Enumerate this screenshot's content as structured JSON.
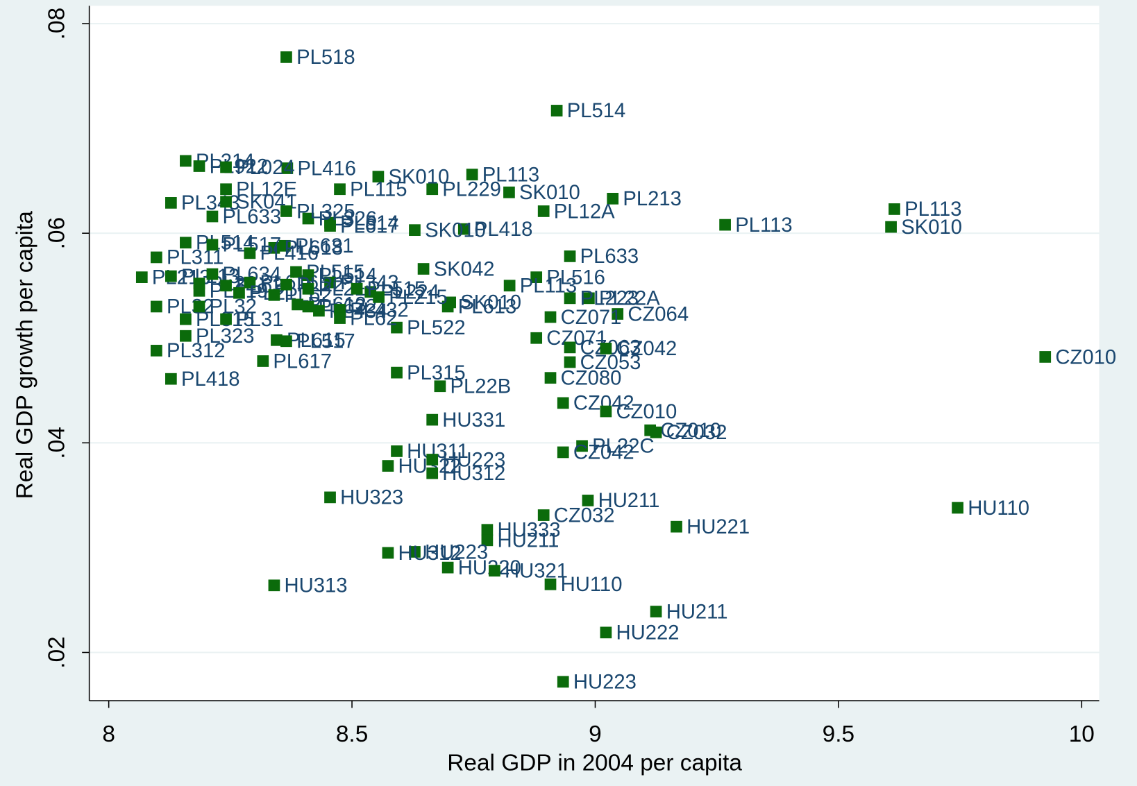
{
  "chart_data": {
    "type": "scatter",
    "x_label": "Real GDP in 2004 per capita",
    "y_label": "Real GDP growth per capita",
    "xlim": [
      7.96,
      10.036
    ],
    "ylim": [
      0.0154,
      0.0817
    ],
    "xticks": [
      8,
      8.5,
      9,
      9.5,
      10
    ],
    "yticks": [
      {
        "value": 0.02,
        "label": ".02"
      },
      {
        "value": 0.04,
        "label": ".04"
      },
      {
        "value": 0.06,
        "label": ".06"
      },
      {
        "value": 0.08,
        "label": ".08"
      }
    ],
    "grid": true,
    "color": "#0b6b0b",
    "label_color": "#1a476f",
    "x": [
      8.365,
      8.921,
      9.925,
      9.745,
      9.615,
      9.608,
      9.267,
      9.036,
      8.894,
      8.823,
      8.747,
      8.665,
      8.554,
      8.475,
      8.367,
      8.948,
      8.879,
      8.824,
      8.647,
      8.73,
      8.629,
      8.987,
      8.948,
      9.046,
      8.908,
      8.879,
      8.948,
      9.022,
      8.948,
      8.908,
      8.934,
      9.022,
      9.113,
      9.125,
      8.973,
      8.934,
      8.985,
      8.894,
      9.167,
      8.778,
      8.778,
      8.629,
      8.574,
      8.697,
      8.793,
      8.908,
      8.34,
      9.125,
      9.022,
      8.934,
      8.455,
      8.665,
      8.592,
      8.574,
      8.665,
      8.665,
      8.592,
      8.681,
      8.592,
      8.697,
      8.702,
      8.538,
      8.098,
      8.128,
      8.317,
      8.158,
      8.098,
      8.128,
      8.158,
      8.186,
      8.241,
      8.241,
      8.213,
      8.362,
      8.34,
      8.068,
      8.098,
      8.158,
      8.345,
      8.365,
      8.158,
      8.213,
      8.29,
      8.128,
      8.186,
      8.186,
      8.213,
      8.241,
      8.29,
      8.268,
      8.385,
      8.41,
      8.455,
      8.186,
      8.241,
      8.34,
      8.365,
      8.388,
      8.41,
      8.432,
      8.475,
      8.475,
      8.41,
      8.455,
      8.41,
      8.365,
      8.455,
      8.241,
      8.51,
      8.555
    ],
    "values": [
      0.0768,
      0.0717,
      0.0482,
      0.0338,
      0.0623,
      0.0606,
      0.0608,
      0.0633,
      0.0621,
      0.0639,
      0.0656,
      0.0642,
      0.0654,
      0.0642,
      0.0662,
      0.0578,
      0.0558,
      0.055,
      0.0566,
      0.0604,
      0.0603,
      0.0538,
      0.0538,
      0.0523,
      0.052,
      0.05,
      0.0491,
      0.049,
      0.0477,
      0.0462,
      0.0438,
      0.043,
      0.0412,
      0.041,
      0.0397,
      0.0391,
      0.0345,
      0.0331,
      0.032,
      0.0317,
      0.0307,
      0.0296,
      0.0295,
      0.0281,
      0.0278,
      0.0265,
      0.0264,
      0.0239,
      0.0219,
      0.0172,
      0.0348,
      0.0422,
      0.0392,
      0.0378,
      0.0384,
      0.0371,
      0.0467,
      0.0454,
      0.051,
      0.053,
      0.0534,
      0.0544,
      0.0488,
      0.0461,
      0.0478,
      0.0502,
      0.0577,
      0.0629,
      0.0669,
      0.0664,
      0.0642,
      0.063,
      0.0616,
      0.0588,
      0.0586,
      0.0558,
      0.053,
      0.0518,
      0.0498,
      0.0497,
      0.0591,
      0.0589,
      0.0581,
      0.0559,
      0.0552,
      0.0545,
      0.0561,
      0.055,
      0.0553,
      0.0543,
      0.0563,
      0.056,
      0.0553,
      0.053,
      0.0518,
      0.0541,
      0.0551,
      0.0532,
      0.053,
      0.0526,
      0.0527,
      0.0519,
      0.0547,
      0.061,
      0.0614,
      0.0621,
      0.0607,
      0.0663,
      0.0547,
      0.0539
    ],
    "labels": [
      "PL518",
      "PL514",
      "CZ010",
      "HU110",
      "PL113",
      "SK010",
      "PL113",
      "PL213",
      "PL12A",
      "SK010",
      "PL113",
      "PL229",
      "SK010",
      "PL115",
      "PL416",
      "PL633",
      "PL516",
      "PL113",
      "SK042",
      "PL418",
      "SK010",
      "PL22A",
      "PL223",
      "CZ064",
      "CZ071",
      "CZ071",
      "CZ063",
      "CZ042",
      "CZ053",
      "CZ080",
      "CZ042",
      "CZ010",
      "CZ010",
      "CZ032",
      "PL22C",
      "CZ042",
      "HU211",
      "CZ032",
      "HU221",
      "HU333",
      "HU211",
      "HU223",
      "HU312",
      "HU220",
      "HU321",
      "HU110",
      "HU313",
      "HU211",
      "HU222",
      "HU223",
      "HU323",
      "HU331",
      "HU311",
      "HU322",
      "HU223",
      "HU312",
      "PL315",
      "PL22B",
      "PL522",
      "PL613",
      "SK010",
      "PL224",
      "PL312",
      "PL418",
      "PL617",
      "PL323",
      "PL311",
      "PL343",
      "PL214",
      "PL922",
      "PL12E",
      "SK041",
      "PL633",
      "PL631",
      "PL618",
      "PL213",
      "PL32",
      "PL315",
      "PL615",
      "PL517",
      "PL514",
      "PL517",
      "PL416",
      "PL213",
      "PL22",
      "PL619",
      "PL634",
      "PL63",
      "PL616",
      "PL21",
      "PL515",
      "PL514",
      "PL343",
      "PL32",
      "PL31",
      "PL62",
      "PL22",
      "PL613",
      "PL622",
      "PL434",
      "PL432",
      "PL62",
      "PL21",
      "PL514",
      "PL326",
      "PL325",
      "PL617",
      "PL024",
      "PL515",
      "PL215"
    ]
  }
}
